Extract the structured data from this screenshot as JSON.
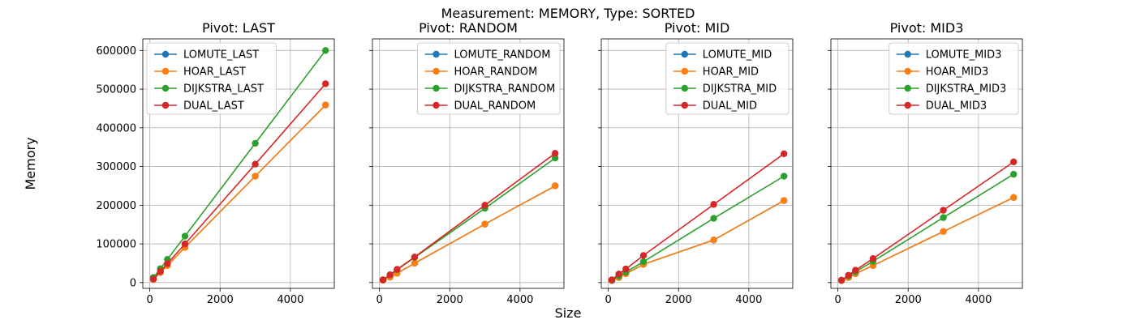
{
  "suptitle": "Measurement: MEMORY, Type: SORTED",
  "xlabel": "Size",
  "ylabel": "Memory",
  "colors": {
    "LOMUTE": "#1f77b4",
    "HOAR": "#ff7f0e",
    "DIJKSTRA": "#2ca02c",
    "DUAL": "#d62728"
  },
  "chart_data": [
    {
      "type": "line",
      "title": "Pivot: LAST",
      "x": [
        100,
        300,
        500,
        1000,
        3000,
        5000
      ],
      "xlim": [
        -200,
        5250
      ],
      "ylim": [
        -15000,
        630000
      ],
      "xticks": [
        0,
        2000,
        4000
      ],
      "yticks": [
        0,
        100000,
        200000,
        300000,
        400000,
        500000,
        600000
      ],
      "grid": true,
      "legend": "upper-left",
      "series": [
        {
          "name": "LOMUTE_LAST",
          "color": "#1f77b4",
          "values": [
            8000,
            26000,
            44000,
            91000,
            275000,
            459000
          ]
        },
        {
          "name": "HOAR_LAST",
          "color": "#ff7f0e",
          "values": [
            8000,
            26000,
            44000,
            91000,
            275000,
            459000
          ]
        },
        {
          "name": "DIJKSTRA_LAST",
          "color": "#2ca02c",
          "values": [
            13000,
            36000,
            60000,
            120000,
            360000,
            600000
          ]
        },
        {
          "name": "DUAL_LAST",
          "color": "#d62728",
          "values": [
            9000,
            29000,
            49000,
            100000,
            306000,
            514000
          ]
        }
      ]
    },
    {
      "type": "line",
      "title": "Pivot: RANDOM",
      "x": [
        100,
        300,
        500,
        1000,
        3000,
        5000
      ],
      "xlim": [
        -200,
        5250
      ],
      "ylim": [
        -15000,
        630000
      ],
      "xticks": [
        0,
        2000,
        4000
      ],
      "yticks": [
        0,
        100000,
        200000,
        300000,
        400000,
        500000,
        600000
      ],
      "grid": true,
      "legend": "upper-right",
      "series": [
        {
          "name": "LOMUTE_RANDOM",
          "color": "#1f77b4",
          "values": [
            6000,
            14000,
            24000,
            50000,
            151000,
            250000
          ]
        },
        {
          "name": "HOAR_RANDOM",
          "color": "#ff7f0e",
          "values": [
            6000,
            14000,
            24000,
            50000,
            151000,
            250000
          ]
        },
        {
          "name": "DIJKSTRA_RANDOM",
          "color": "#2ca02c",
          "values": [
            7000,
            20000,
            33000,
            65000,
            192000,
            322000
          ]
        },
        {
          "name": "DUAL_RANDOM",
          "color": "#d62728",
          "values": [
            7000,
            20000,
            34000,
            66000,
            200000,
            334000
          ]
        }
      ]
    },
    {
      "type": "line",
      "title": "Pivot: MID",
      "x": [
        100,
        300,
        500,
        1000,
        3000,
        5000
      ],
      "xlim": [
        -200,
        5250
      ],
      "ylim": [
        -15000,
        630000
      ],
      "xticks": [
        0,
        2000,
        4000
      ],
      "yticks": [
        0,
        100000,
        200000,
        300000,
        400000,
        500000,
        600000
      ],
      "grid": true,
      "legend": "upper-right",
      "series": [
        {
          "name": "LOMUTE_MID",
          "color": "#1f77b4",
          "values": [
            5000,
            13000,
            23000,
            47000,
            110000,
            212000
          ]
        },
        {
          "name": "HOAR_MID",
          "color": "#ff7f0e",
          "values": [
            5000,
            13000,
            23000,
            47000,
            110000,
            212000
          ]
        },
        {
          "name": "DIJKSTRA_MID",
          "color": "#2ca02c",
          "values": [
            6000,
            17000,
            27000,
            54000,
            166000,
            275000
          ]
        },
        {
          "name": "DUAL_MID",
          "color": "#d62728",
          "values": [
            7000,
            22000,
            35000,
            70000,
            202000,
            333000
          ]
        }
      ]
    },
    {
      "type": "line",
      "title": "Pivot: MID3",
      "x": [
        100,
        300,
        500,
        1000,
        3000,
        5000
      ],
      "xlim": [
        -200,
        5250
      ],
      "ylim": [
        -15000,
        630000
      ],
      "xticks": [
        0,
        2000,
        4000
      ],
      "yticks": [
        0,
        100000,
        200000,
        300000,
        400000,
        500000,
        600000
      ],
      "grid": true,
      "legend": "upper-right",
      "series": [
        {
          "name": "LOMUTE_MID3",
          "color": "#1f77b4",
          "values": [
            5000,
            13000,
            23000,
            44000,
            132000,
            220000
          ]
        },
        {
          "name": "HOAR_MID3",
          "color": "#ff7f0e",
          "values": [
            5000,
            13000,
            23000,
            44000,
            132000,
            220000
          ]
        },
        {
          "name": "DIJKSTRA_MID3",
          "color": "#2ca02c",
          "values": [
            6000,
            17000,
            28000,
            55000,
            168000,
            280000
          ]
        },
        {
          "name": "DUAL_MID3",
          "color": "#d62728",
          "values": [
            6000,
            19000,
            32000,
            62000,
            187000,
            312000
          ]
        }
      ]
    }
  ]
}
